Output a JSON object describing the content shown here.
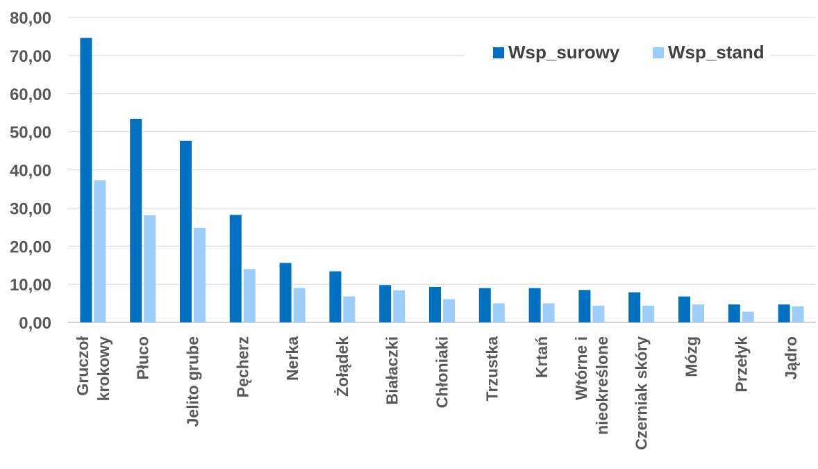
{
  "chart_data": {
    "type": "bar",
    "categories": [
      [
        "Gruczoł",
        "krokowy"
      ],
      [
        "Płuco"
      ],
      [
        "Jelito grube"
      ],
      [
        "Pęcherz"
      ],
      [
        "Nerka"
      ],
      [
        "Żołądek"
      ],
      [
        "Białaczki"
      ],
      [
        "Chłoniaki"
      ],
      [
        "Trzustka"
      ],
      [
        "Krtań"
      ],
      [
        "Wtórne i",
        "nieokreślone"
      ],
      [
        "Czerniak skóry"
      ],
      [
        "Mózg"
      ],
      [
        "Przełyk"
      ],
      [
        "Jądro"
      ]
    ],
    "series": [
      {
        "name": "Wsp_surowy",
        "color": "#0070c0",
        "values": [
          74.6,
          53.4,
          47.6,
          28.2,
          15.6,
          13.4,
          9.8,
          9.3,
          9.0,
          9.0,
          8.5,
          7.9,
          6.8,
          4.7,
          4.7
        ]
      },
      {
        "name": "Wsp_stand",
        "color": "#9dcdfa",
        "values": [
          37.3,
          28.1,
          24.8,
          14.0,
          9.0,
          6.8,
          8.4,
          6.1,
          5.0,
          5.0,
          4.4,
          4.4,
          4.7,
          2.8,
          4.2
        ]
      }
    ],
    "y_ticks": [
      "0,00",
      "10,00",
      "20,00",
      "30,00",
      "40,00",
      "50,00",
      "60,00",
      "70,00",
      "80,00"
    ],
    "ylim": [
      0,
      80
    ],
    "grid": true,
    "legend_position": "top-right",
    "title": "",
    "xlabel": "",
    "ylabel": ""
  }
}
